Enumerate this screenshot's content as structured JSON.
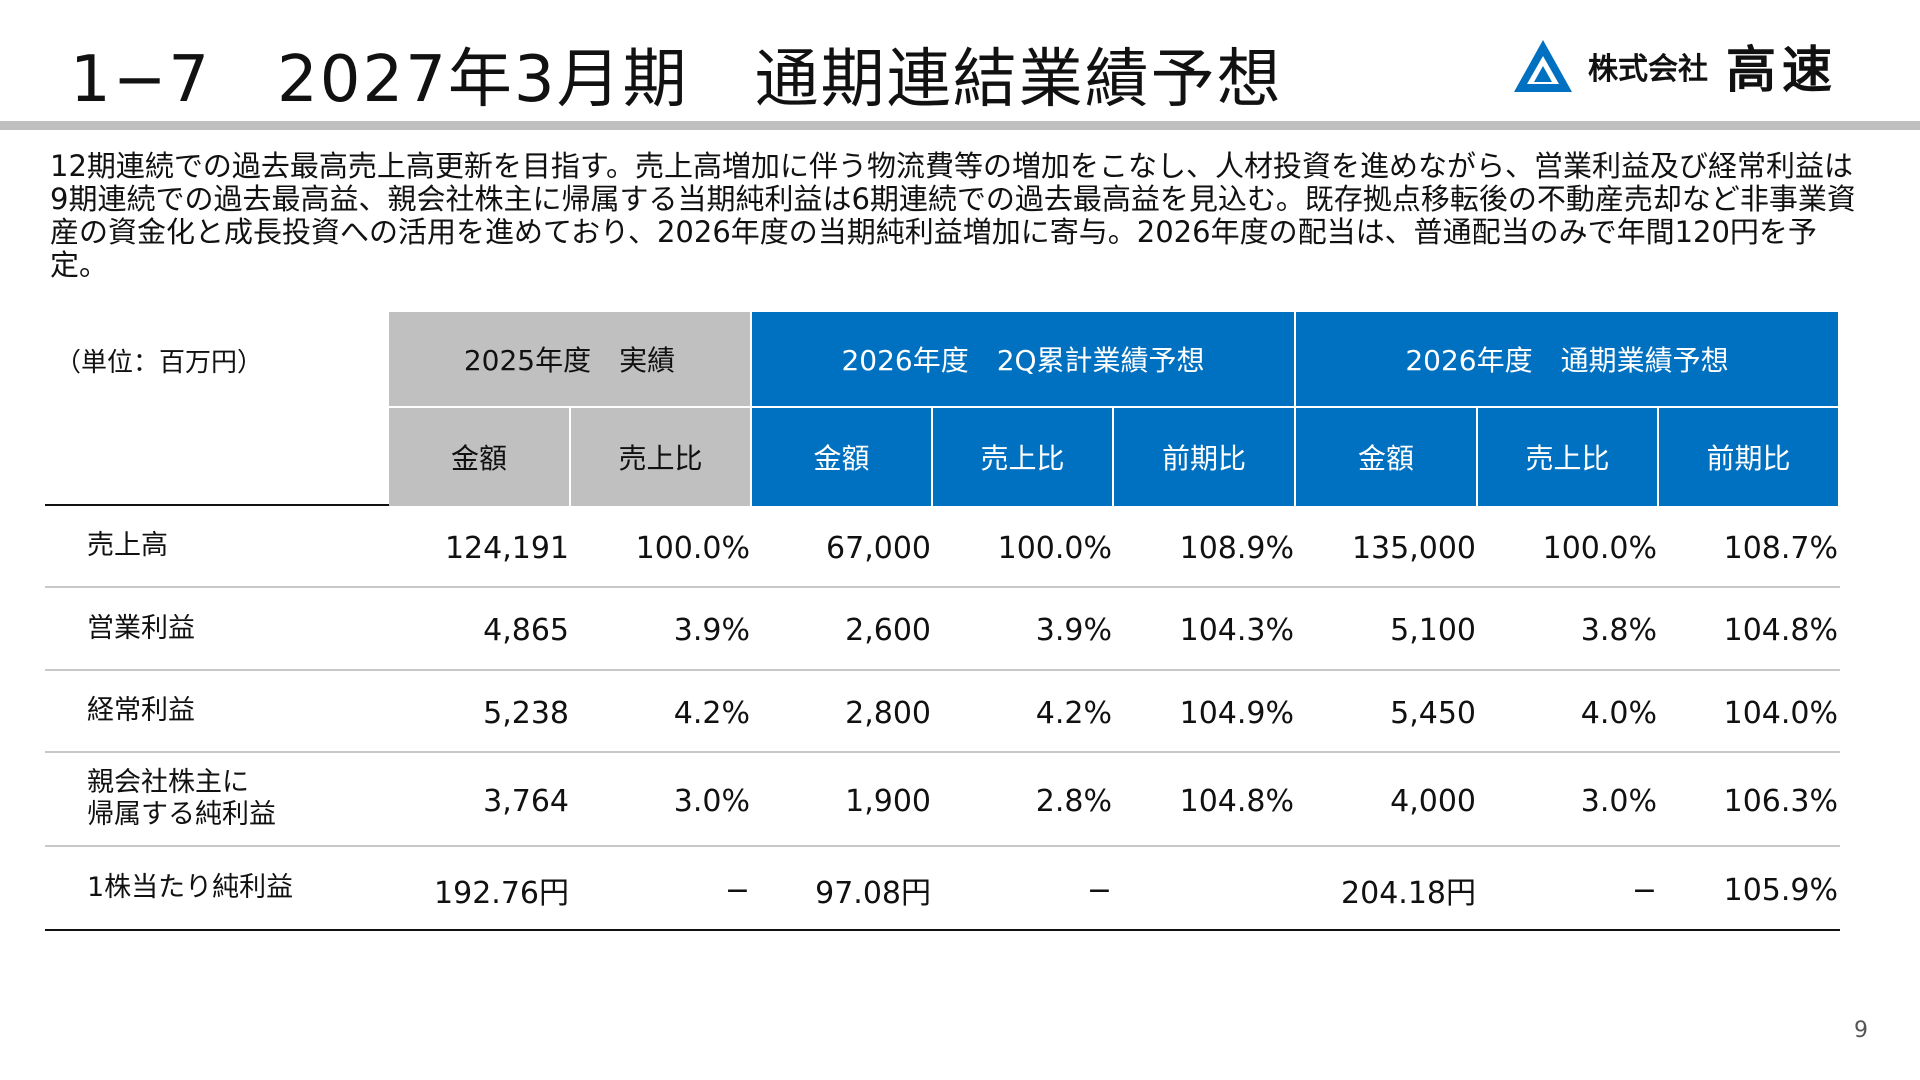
{
  "header": {
    "title": "1−7　2027年3月期　通期連結業績予想",
    "company_small": "株式会社",
    "company_large": "高速"
  },
  "intro": "12期連続での過去最高売上高更新を目指す。売上高増加に伴う物流費等の増加をこなし、人材投資を進めながら、営業利益及び経常利益は9期連続での過去最高益、親会社株主に帰属する当期純利益は6期連続での過去最高益を見込む。既存拠点移転後の不動産売却など非事業資産の資金化と成長投資への活用を進めており、2026年度の当期純利益増加に寄与。2026年度の配当は、普通配当のみで年間120円を予定。",
  "table": {
    "unit": "（単位：百万円）",
    "groups": [
      {
        "label": "2025年度　実績",
        "columns": [
          "金額",
          "売上比"
        ]
      },
      {
        "label": "2026年度　2Q累計業績予想",
        "columns": [
          "金額",
          "売上比",
          "前期比"
        ]
      },
      {
        "label": "2026年度　通期業績予想",
        "columns": [
          "金額",
          "売上比",
          "前期比"
        ]
      }
    ],
    "rows": [
      {
        "label_lines": [
          "売上高"
        ],
        "cells": [
          "124,191",
          "100.0%",
          "67,000",
          "100.0%",
          "108.9%",
          "135,000",
          "100.0%",
          "108.7%"
        ]
      },
      {
        "label_lines": [
          "営業利益"
        ],
        "cells": [
          "4,865",
          "3.9%",
          "2,600",
          "3.9%",
          "104.3%",
          "5,100",
          "3.8%",
          "104.8%"
        ]
      },
      {
        "label_lines": [
          "経常利益"
        ],
        "cells": [
          "5,238",
          "4.2%",
          "2,800",
          "4.2%",
          "104.9%",
          "5,450",
          "4.0%",
          "104.0%"
        ]
      },
      {
        "label_lines": [
          "親会社株主に",
          "帰属する純利益"
        ],
        "cells": [
          "3,764",
          "3.0%",
          "1,900",
          "2.8%",
          "104.8%",
          "4,000",
          "3.0%",
          "106.3%"
        ]
      },
      {
        "label_lines": [
          "1株当たり純利益"
        ],
        "cells": [
          "192.76円",
          "−",
          "97.08円",
          "−",
          null,
          "204.18円",
          "−",
          "105.9%"
        ]
      }
    ]
  },
  "page_number": "9"
}
